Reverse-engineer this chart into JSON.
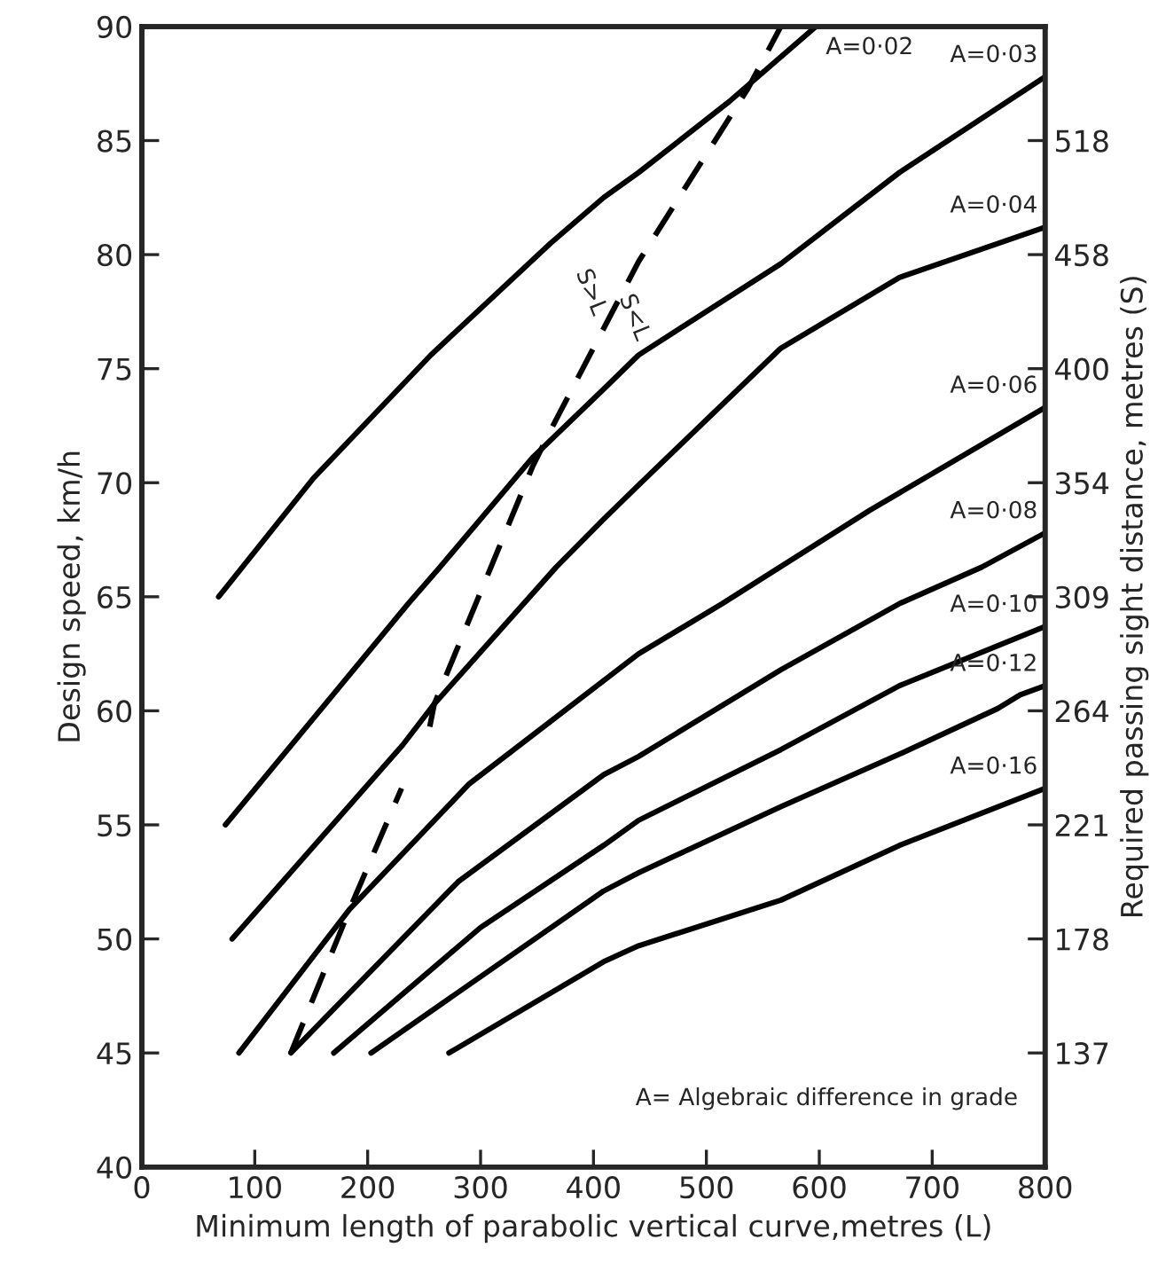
{
  "chart_data": {
    "type": "line",
    "xlabel": "Minimum length of parabolic vertical curve,metres (L)",
    "ylabel": "Design speed, km/h",
    "y2label": "Required passing sight distance, metres (S)",
    "xlim": [
      0,
      800
    ],
    "xticks": [
      0,
      100,
      200,
      300,
      400,
      500,
      600,
      700,
      800
    ],
    "ylim": [
      40,
      90
    ],
    "yticks": [
      40,
      45,
      50,
      55,
      60,
      65,
      70,
      75,
      80,
      85,
      90
    ],
    "y2_categories": [
      null,
      "137",
      "178",
      "221",
      "264",
      "309",
      "354",
      "400",
      "458",
      "518",
      null
    ],
    "grid": false,
    "legend": false,
    "series": [
      {
        "name": "A=0·02",
        "color": "#000000",
        "line_style": "solid",
        "x": [
          68,
          152,
          256,
          362,
          409,
          440,
          520,
          597
        ],
        "values": [
          65,
          70.2,
          75.6,
          80.5,
          82.5,
          83.6,
          86.7,
          90
        ]
      },
      {
        "name": "A=0·03",
        "color": "#000000",
        "line_style": "solid",
        "x": [
          74,
          236,
          264,
          346,
          409,
          440,
          566,
          671,
          800
        ],
        "values": [
          55,
          64.7,
          66.3,
          71.1,
          74.1,
          75.6,
          79.6,
          83.6,
          87.8
        ]
      },
      {
        "name": "A=0·04",
        "color": "#000000",
        "line_style": "solid",
        "x": [
          80,
          231,
          259,
          367,
          409,
          440,
          566,
          671,
          800
        ],
        "values": [
          50,
          58.5,
          60.3,
          66.3,
          68.4,
          69.9,
          75.9,
          79.0,
          81.2
        ]
      },
      {
        "name": "A=0·06",
        "color": "#000000",
        "line_style": "solid",
        "x": [
          86,
          184,
          290,
          440,
          514,
          645,
          800
        ],
        "values": [
          45,
          51.3,
          56.8,
          62.5,
          64.7,
          68.8,
          73.3
        ]
      },
      {
        "name": "A=0·08",
        "color": "#000000",
        "line_style": "solid",
        "x": [
          132,
          280,
          409,
          440,
          566,
          671,
          744,
          800
        ],
        "values": [
          45,
          52.5,
          57.2,
          58.0,
          61.8,
          64.7,
          66.3,
          67.8
        ]
      },
      {
        "name": "A=0·10",
        "color": "#000000",
        "line_style": "solid",
        "x": [
          170,
          300,
          409,
          440,
          566,
          671,
          800
        ],
        "values": [
          45,
          50.5,
          54.1,
          55.2,
          58.3,
          61.1,
          63.7
        ]
      },
      {
        "name": "A=0·12",
        "color": "#000000",
        "line_style": "solid",
        "x": [
          203,
          409,
          440,
          566,
          671,
          758,
          778,
          800
        ],
        "values": [
          45,
          52.1,
          52.9,
          55.8,
          58.1,
          60.1,
          60.7,
          61.1
        ]
      },
      {
        "name": "A=0·16",
        "color": "#000000",
        "line_style": "solid",
        "x": [
          272,
          409,
          440,
          566,
          671,
          800
        ],
        "values": [
          45,
          49.0,
          49.7,
          51.7,
          54.1,
          56.6
        ]
      },
      {
        "color": "#000000",
        "line_style": "dashed",
        "x": [
          132,
          184,
          230,
          242,
          255,
          259,
          346,
          362,
          440,
          537,
          566
        ],
        "values": [
          45,
          51.3,
          56.6,
          null,
          59.3,
          60.3,
          70.7,
          72.3,
          79.7,
          87.3,
          90
        ]
      }
    ],
    "annotations": [
      "S>L",
      "S<L",
      "A= Algebraic difference in grade"
    ]
  }
}
